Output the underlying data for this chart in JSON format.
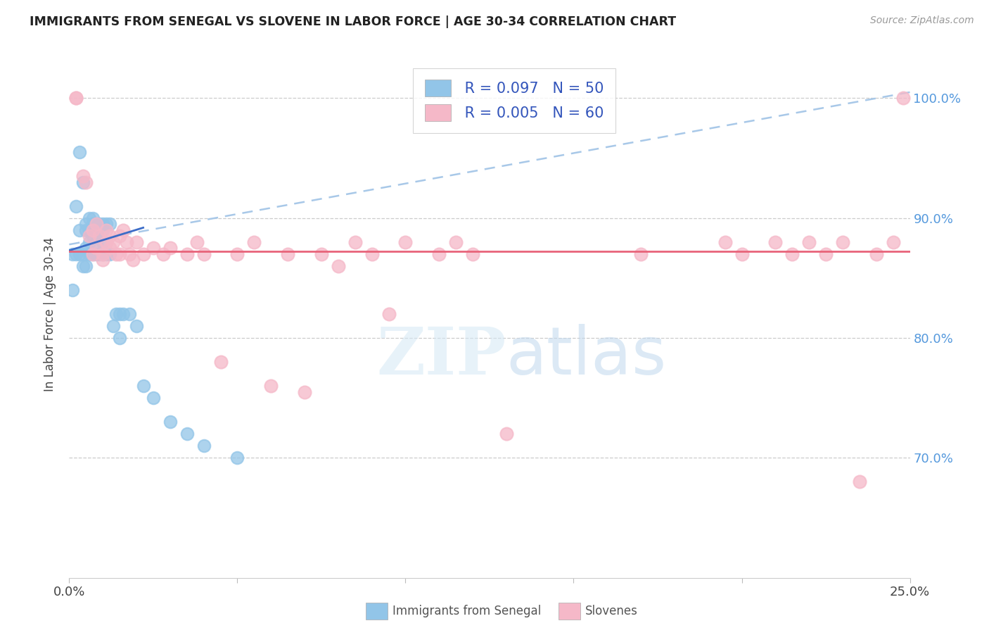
{
  "title": "IMMIGRANTS FROM SENEGAL VS SLOVENE IN LABOR FORCE | AGE 30-34 CORRELATION CHART",
  "source": "Source: ZipAtlas.com",
  "ylabel": "In Labor Force | Age 30-34",
  "xlim": [
    0.0,
    0.25
  ],
  "ylim": [
    0.6,
    1.04
  ],
  "yticks": [
    0.7,
    0.8,
    0.9,
    1.0
  ],
  "ytick_labels": [
    "70.0%",
    "80.0%",
    "90.0%",
    "100.0%"
  ],
  "xticks": [
    0.0,
    0.05,
    0.1,
    0.15,
    0.2,
    0.25
  ],
  "xtick_labels": [
    "0.0%",
    "",
    "",
    "",
    "",
    "25.0%"
  ],
  "legend_blue_r": "R = 0.097",
  "legend_blue_n": "N = 50",
  "legend_pink_r": "R = 0.005",
  "legend_pink_n": "N = 60",
  "legend_blue_label": "Immigrants from Senegal",
  "legend_pink_label": "Slovenes",
  "blue_color": "#92C5E8",
  "pink_color": "#F5B8C8",
  "trend_blue_color": "#3B6CC7",
  "trend_pink_color": "#E8647A",
  "trend_dash_color": "#A8C8E8",
  "watermark_zip": "ZIP",
  "watermark_atlas": "atlas",
  "watermark_color": "#D0E4F4",
  "blue_scatter_x": [
    0.001,
    0.001,
    0.002,
    0.002,
    0.003,
    0.003,
    0.003,
    0.004,
    0.004,
    0.004,
    0.005,
    0.005,
    0.005,
    0.005,
    0.006,
    0.006,
    0.006,
    0.006,
    0.007,
    0.007,
    0.007,
    0.007,
    0.008,
    0.008,
    0.008,
    0.008,
    0.009,
    0.009,
    0.009,
    0.01,
    0.01,
    0.01,
    0.01,
    0.011,
    0.011,
    0.012,
    0.012,
    0.013,
    0.014,
    0.015,
    0.015,
    0.016,
    0.018,
    0.02,
    0.022,
    0.025,
    0.03,
    0.035,
    0.04,
    0.05
  ],
  "blue_scatter_y": [
    0.87,
    0.84,
    0.91,
    0.87,
    0.955,
    0.89,
    0.87,
    0.93,
    0.87,
    0.86,
    0.895,
    0.89,
    0.875,
    0.86,
    0.9,
    0.89,
    0.88,
    0.87,
    0.9,
    0.895,
    0.885,
    0.87,
    0.895,
    0.89,
    0.88,
    0.87,
    0.895,
    0.885,
    0.87,
    0.895,
    0.89,
    0.88,
    0.87,
    0.895,
    0.87,
    0.895,
    0.87,
    0.81,
    0.82,
    0.82,
    0.8,
    0.82,
    0.82,
    0.81,
    0.76,
    0.75,
    0.73,
    0.72,
    0.71,
    0.7
  ],
  "pink_scatter_x": [
    0.002,
    0.002,
    0.004,
    0.005,
    0.006,
    0.007,
    0.007,
    0.008,
    0.008,
    0.009,
    0.01,
    0.01,
    0.011,
    0.011,
    0.012,
    0.012,
    0.013,
    0.014,
    0.015,
    0.015,
    0.016,
    0.017,
    0.018,
    0.019,
    0.02,
    0.022,
    0.025,
    0.028,
    0.03,
    0.035,
    0.038,
    0.04,
    0.045,
    0.05,
    0.055,
    0.06,
    0.065,
    0.07,
    0.075,
    0.08,
    0.085,
    0.09,
    0.095,
    0.1,
    0.11,
    0.115,
    0.12,
    0.13,
    0.17,
    0.195,
    0.2,
    0.21,
    0.215,
    0.22,
    0.225,
    0.23,
    0.235,
    0.24,
    0.245,
    0.248
  ],
  "pink_scatter_y": [
    1.0,
    1.0,
    0.935,
    0.93,
    0.885,
    0.89,
    0.87,
    0.895,
    0.875,
    0.885,
    0.87,
    0.865,
    0.89,
    0.88,
    0.885,
    0.875,
    0.88,
    0.87,
    0.885,
    0.87,
    0.89,
    0.88,
    0.87,
    0.865,
    0.88,
    0.87,
    0.875,
    0.87,
    0.875,
    0.87,
    0.88,
    0.87,
    0.78,
    0.87,
    0.88,
    0.76,
    0.87,
    0.755,
    0.87,
    0.86,
    0.88,
    0.87,
    0.82,
    0.88,
    0.87,
    0.88,
    0.87,
    0.72,
    0.87,
    0.88,
    0.87,
    0.88,
    0.87,
    0.88,
    0.87,
    0.88,
    0.68,
    0.87,
    0.88,
    1.0
  ],
  "trend_blue_x0": 0.0,
  "trend_blue_x1": 0.022,
  "trend_blue_y0": 0.873,
  "trend_blue_y1": 0.892,
  "trend_pink_y": 0.872,
  "trend_dash_x0": 0.0,
  "trend_dash_x1": 0.25,
  "trend_dash_y0": 0.878,
  "trend_dash_y1": 1.005
}
